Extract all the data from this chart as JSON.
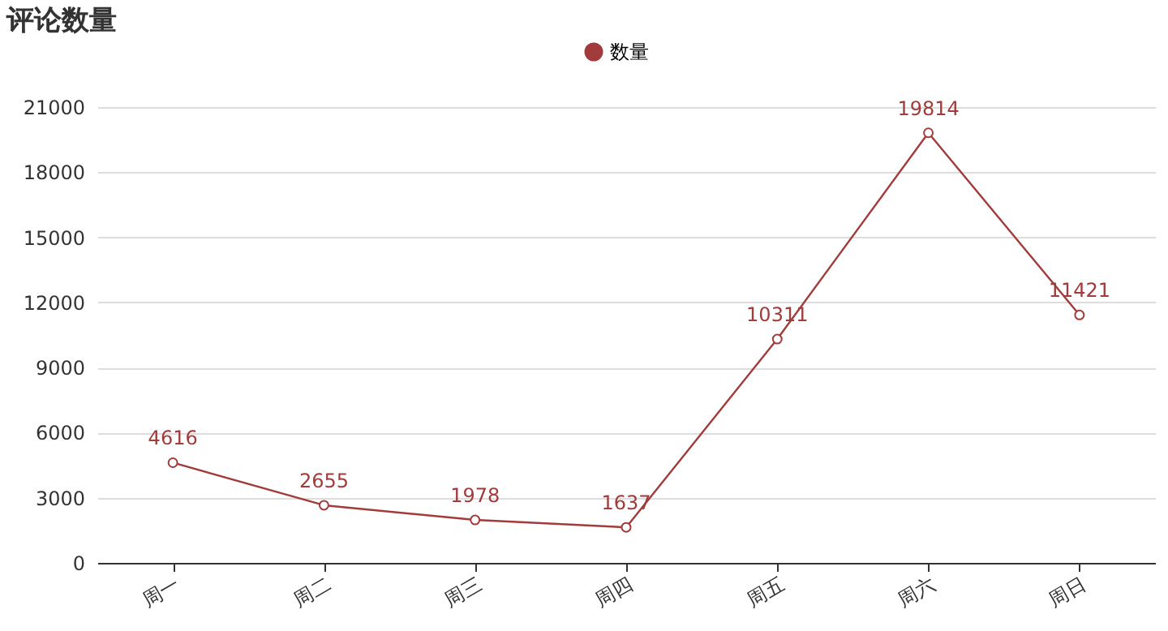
{
  "chart_data": {
    "type": "line",
    "title": "评论数量",
    "categories": [
      "周一",
      "周二",
      "周三",
      "周四",
      "周五",
      "周六",
      "周日"
    ],
    "series": [
      {
        "name": "数量",
        "color": "#a23b3b",
        "values": [
          4616,
          2655,
          1978,
          1637,
          10311,
          19814,
          11421
        ]
      }
    ],
    "ylim": [
      0,
      21000
    ],
    "yticks": [
      0,
      3000,
      6000,
      9000,
      12000,
      15000,
      18000,
      21000
    ],
    "grid": "y",
    "legend": "top",
    "marker": "circle",
    "line_style": "solid",
    "data_labels": true
  }
}
